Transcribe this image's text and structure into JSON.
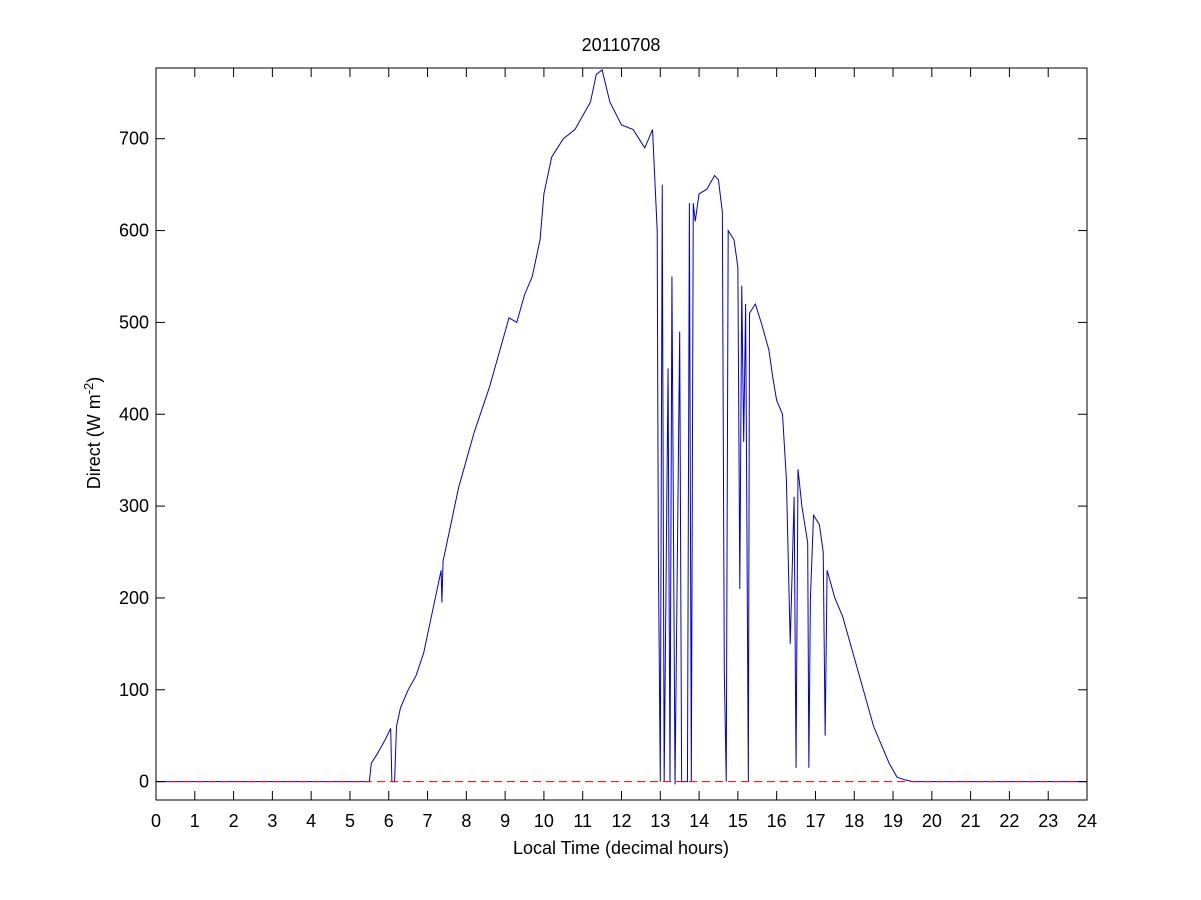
{
  "chart_data": {
    "type": "line",
    "title": "20110708",
    "xlabel": "Local Time (decimal hours)",
    "ylabel": [
      "Direct (W m",
      "-2",
      ")"
    ],
    "xlim": [
      0,
      24
    ],
    "ylim": [
      -20,
      777
    ],
    "xticks": [
      0,
      1,
      2,
      3,
      4,
      5,
      6,
      7,
      8,
      9,
      10,
      11,
      12,
      13,
      14,
      15,
      16,
      17,
      18,
      19,
      20,
      21,
      22,
      23,
      24
    ],
    "yticks": [
      0,
      100,
      200,
      300,
      400,
      500,
      600,
      700
    ],
    "grid": false,
    "series": [
      {
        "color": "#0000cc",
        "style": "solid",
        "x": [
          0,
          5.5,
          5.55,
          5.7,
          5.9,
          6.05,
          6.08,
          6.15,
          6.2,
          6.3,
          6.5,
          6.7,
          6.9,
          7.0,
          7.2,
          7.35,
          7.37,
          7.4,
          7.6,
          7.8,
          8.0,
          8.2,
          8.4,
          8.6,
          8.8,
          9.0,
          9.1,
          9.3,
          9.5,
          9.7,
          9.9,
          10.0,
          10.2,
          10.5,
          10.8,
          11.0,
          11.2,
          11.35,
          11.5,
          11.7,
          12.0,
          12.3,
          12.6,
          12.8,
          12.92,
          12.95,
          13.0,
          13.05,
          13.1,
          13.2,
          13.25,
          13.3,
          13.38,
          13.5,
          13.55,
          13.7,
          13.75,
          13.8,
          13.85,
          13.9,
          14.0,
          14.2,
          14.4,
          14.5,
          14.6,
          14.65,
          14.7,
          14.75,
          14.9,
          15.0,
          15.05,
          15.1,
          15.15,
          15.2,
          15.27,
          15.3,
          15.45,
          15.6,
          15.8,
          15.9,
          16.0,
          16.15,
          16.25,
          16.35,
          16.45,
          16.5,
          16.55,
          16.65,
          16.8,
          16.83,
          16.87,
          16.95,
          17.1,
          17.2,
          17.25,
          17.3,
          17.5,
          17.7,
          17.9,
          18.1,
          18.3,
          18.5,
          18.7,
          18.9,
          19.1,
          19.3,
          19.5,
          24
        ],
        "values": [
          0,
          0,
          20,
          30,
          45,
          58,
          0,
          0,
          60,
          80,
          100,
          115,
          140,
          160,
          200,
          230,
          195,
          240,
          280,
          320,
          350,
          380,
          405,
          430,
          460,
          490,
          505,
          500,
          530,
          550,
          590,
          640,
          680,
          700,
          710,
          725,
          740,
          770,
          775,
          740,
          715,
          710,
          690,
          710,
          600,
          250,
          0,
          650,
          0,
          450,
          0,
          550,
          -3,
          490,
          0,
          0,
          630,
          0,
          630,
          610,
          640,
          645,
          660,
          655,
          620,
          120,
          0,
          600,
          590,
          560,
          210,
          540,
          370,
          520,
          0,
          510,
          520,
          500,
          470,
          440,
          415,
          400,
          330,
          150,
          310,
          15,
          340,
          300,
          260,
          15,
          200,
          290,
          280,
          250,
          50,
          230,
          200,
          180,
          150,
          120,
          90,
          60,
          40,
          20,
          5,
          2,
          0,
          0
        ]
      },
      {
        "color": "#ff0000",
        "style": "dashed",
        "x": [
          0,
          24
        ],
        "values": [
          0,
          0
        ]
      }
    ]
  }
}
